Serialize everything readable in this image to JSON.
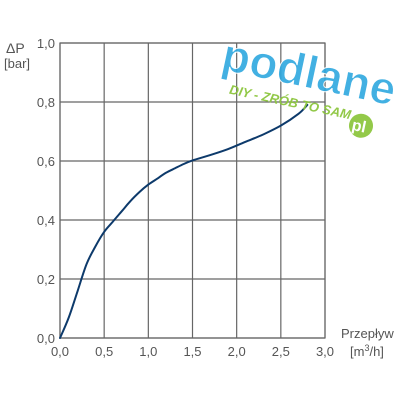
{
  "chart_data": {
    "type": "line",
    "title": "",
    "ylabel_symbol": "ΔP",
    "ylabel_unit": "[bar]",
    "xlabel_name": "Przepływ",
    "xlabel_unit_prefix": "[m",
    "xlabel_unit_sup": "3",
    "xlabel_unit_suffix": "/h]",
    "xlim": [
      0,
      3
    ],
    "ylim": [
      0,
      1
    ],
    "x_ticks": [
      {
        "value": 0,
        "label": "0,0"
      },
      {
        "value": 0.5,
        "label": "0,5"
      },
      {
        "value": 1,
        "label": "1,0"
      },
      {
        "value": 1.5,
        "label": "1,5"
      },
      {
        "value": 2,
        "label": "2,0"
      },
      {
        "value": 2.5,
        "label": "2,5"
      },
      {
        "value": 3,
        "label": "3,0"
      }
    ],
    "y_ticks": [
      {
        "value": 0,
        "label": "0,0"
      },
      {
        "value": 0.2,
        "label": "0,2"
      },
      {
        "value": 0.4,
        "label": "0,4"
      },
      {
        "value": 0.6,
        "label": "0,6"
      },
      {
        "value": 0.8,
        "label": "0,8"
      },
      {
        "value": 1,
        "label": "1,0"
      }
    ],
    "grid": true,
    "series": [
      {
        "color": "#0d3a6b",
        "x": [
          0,
          0.1,
          0.2,
          0.3,
          0.4,
          0.5,
          0.6,
          0.7,
          0.8,
          0.9,
          1.0,
          1.1,
          1.2,
          1.3,
          1.4,
          1.5,
          1.7,
          1.9,
          2.1,
          2.3,
          2.5,
          2.7,
          2.8
        ],
        "y": [
          0,
          0.07,
          0.16,
          0.25,
          0.31,
          0.36,
          0.395,
          0.43,
          0.465,
          0.495,
          0.52,
          0.54,
          0.56,
          0.575,
          0.59,
          0.602,
          0.62,
          0.64,
          0.665,
          0.69,
          0.72,
          0.76,
          0.79
        ]
      }
    ]
  },
  "watermark": {
    "text_main": "podlane",
    "text_sub": "DIY - ZRÓB TO SAM",
    "text_tld": "pl",
    "color_main": "#2ea8df",
    "color_sub": "#8dc63f"
  }
}
